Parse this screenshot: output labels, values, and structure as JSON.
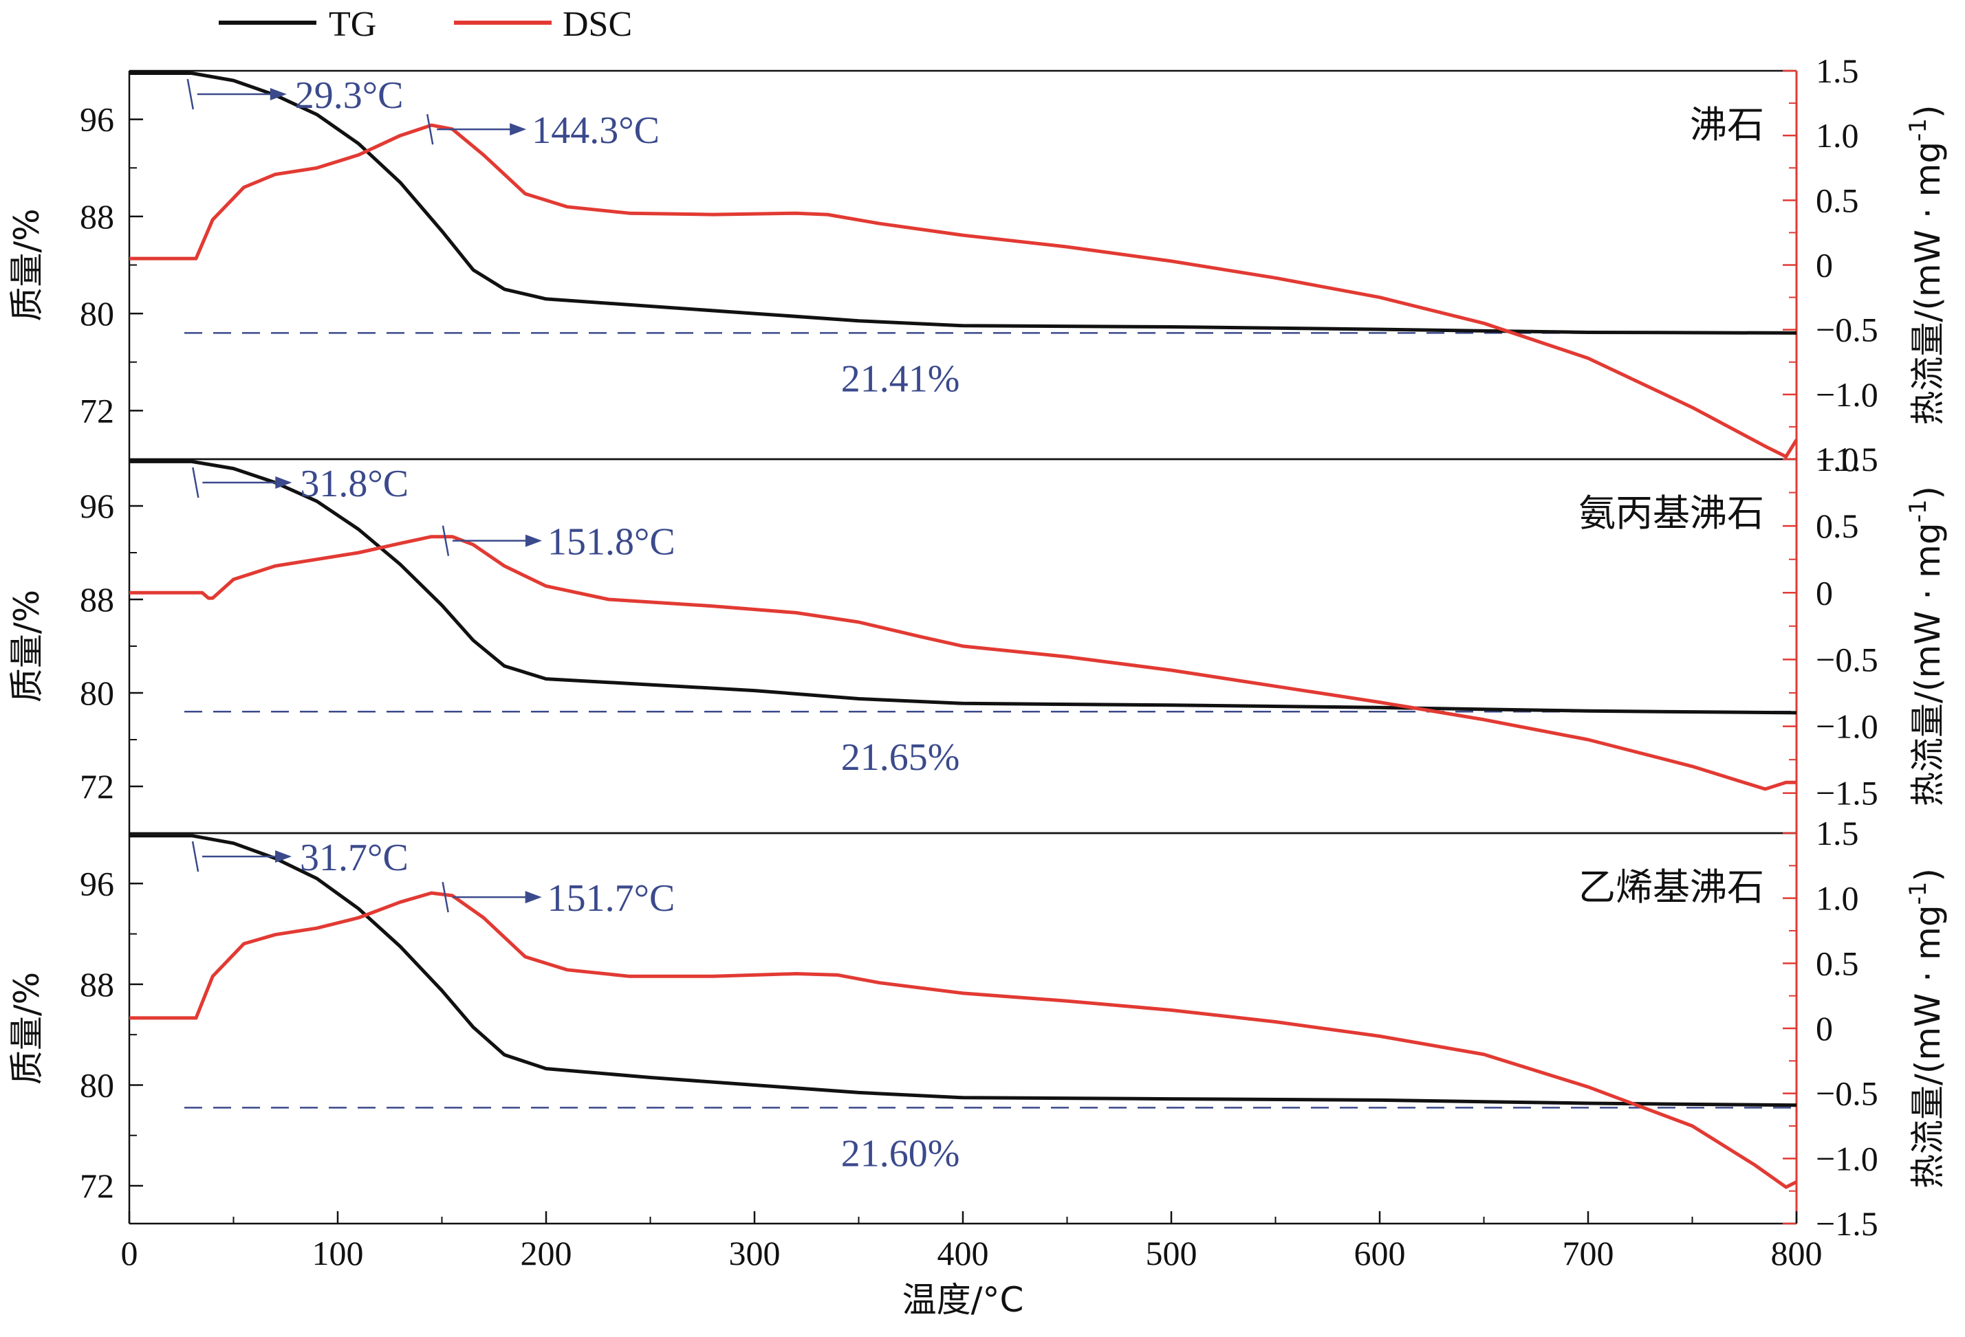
{
  "chart_data": {
    "type": "line",
    "xlabel": "温度/°C",
    "x_ticks": [
      0,
      100,
      200,
      300,
      400,
      500,
      600,
      700,
      800
    ],
    "xlim": [
      0,
      800
    ],
    "legend": [
      {
        "name": "TG",
        "color": "#111111"
      },
      {
        "name": "DSC",
        "color": "#e23a33"
      }
    ],
    "colors": {
      "tg": "#111111",
      "dsc": "#e23a33",
      "annotation": "#3b4a8c"
    },
    "left_ylabel": "质量/%",
    "right_ylabel": "热流量/(mW · mg",
    "right_ylabel_sup": "-1",
    "right_ylabel_close": ")",
    "panels": [
      {
        "label": "沸石",
        "tg_ylim": [
          68,
          100
        ],
        "tg_ticks": [
          72,
          80,
          88,
          96
        ],
        "tg_tick_labels": [
          "72",
          "80",
          "88",
          "96"
        ],
        "dsc_ylim": [
          -1.5,
          1.5
        ],
        "dsc_ticks": [
          -1.5,
          -1.0,
          -0.5,
          0,
          0.5,
          1.0,
          1.5
        ],
        "dsc_tick_labels": [
          "−1.5",
          "−1.0",
          "−0.5",
          "0",
          "0.5",
          "1.0",
          "1.5"
        ],
        "dashed_y": 78.4,
        "mass_loss": "21.41%",
        "onset": {
          "x": 29.3,
          "label": "29.3°C"
        },
        "peak": {
          "x": 144.3,
          "label": "144.3°C"
        },
        "tg": [
          [
            0,
            99.8
          ],
          [
            20,
            99.8
          ],
          [
            30,
            99.8
          ],
          [
            50,
            99.2
          ],
          [
            70,
            98.0
          ],
          [
            90,
            96.4
          ],
          [
            110,
            94.0
          ],
          [
            130,
            90.8
          ],
          [
            150,
            86.8
          ],
          [
            165,
            83.6
          ],
          [
            180,
            82.0
          ],
          [
            200,
            81.2
          ],
          [
            250,
            80.6
          ],
          [
            300,
            80.0
          ],
          [
            350,
            79.4
          ],
          [
            400,
            79.0
          ],
          [
            500,
            78.9
          ],
          [
            600,
            78.7
          ],
          [
            700,
            78.45
          ],
          [
            800,
            78.4
          ]
        ],
        "dsc": [
          [
            0,
            0.05
          ],
          [
            30,
            0.05
          ],
          [
            32,
            0.05
          ],
          [
            40,
            0.35
          ],
          [
            55,
            0.6
          ],
          [
            70,
            0.7
          ],
          [
            90,
            0.75
          ],
          [
            110,
            0.85
          ],
          [
            130,
            1.0
          ],
          [
            145,
            1.08
          ],
          [
            155,
            1.05
          ],
          [
            170,
            0.85
          ],
          [
            190,
            0.55
          ],
          [
            210,
            0.45
          ],
          [
            240,
            0.4
          ],
          [
            280,
            0.39
          ],
          [
            320,
            0.4
          ],
          [
            335,
            0.39
          ],
          [
            360,
            0.32
          ],
          [
            400,
            0.23
          ],
          [
            450,
            0.14
          ],
          [
            500,
            0.03
          ],
          [
            550,
            -0.1
          ],
          [
            600,
            -0.25
          ],
          [
            650,
            -0.45
          ],
          [
            700,
            -0.72
          ],
          [
            750,
            -1.1
          ],
          [
            785,
            -1.4
          ],
          [
            795,
            -1.48
          ],
          [
            800,
            -1.35
          ]
        ]
      },
      {
        "label": "氨丙基沸石",
        "tg_ylim": [
          68,
          100
        ],
        "tg_ticks": [
          72,
          80,
          88,
          96
        ],
        "tg_tick_labels": [
          "72",
          "80",
          "88",
          "96"
        ],
        "dsc_ylim": [
          -1.8,
          1.0
        ],
        "dsc_ticks": [
          -1.5,
          -1.0,
          -0.5,
          0,
          0.5,
          1.0
        ],
        "dsc_tick_labels": [
          "−1.5",
          "−1.0",
          "−0.5",
          "0",
          "0.5",
          "1.0"
        ],
        "dashed_y": 78.4,
        "mass_loss": "21.65%",
        "onset": {
          "x": 31.8,
          "label": "31.8°C"
        },
        "peak": {
          "x": 151.8,
          "label": "151.8°C"
        },
        "tg": [
          [
            0,
            99.8
          ],
          [
            20,
            99.8
          ],
          [
            30,
            99.8
          ],
          [
            50,
            99.2
          ],
          [
            70,
            98.0
          ],
          [
            90,
            96.4
          ],
          [
            110,
            94.0
          ],
          [
            130,
            91.0
          ],
          [
            150,
            87.5
          ],
          [
            165,
            84.5
          ],
          [
            180,
            82.3
          ],
          [
            200,
            81.2
          ],
          [
            250,
            80.7
          ],
          [
            300,
            80.2
          ],
          [
            350,
            79.5
          ],
          [
            400,
            79.1
          ],
          [
            500,
            78.95
          ],
          [
            600,
            78.75
          ],
          [
            700,
            78.45
          ],
          [
            800,
            78.3
          ]
        ],
        "dsc": [
          [
            0,
            0.0
          ],
          [
            35,
            0.0
          ],
          [
            38,
            -0.04
          ],
          [
            40,
            -0.04
          ],
          [
            50,
            0.1
          ],
          [
            70,
            0.2
          ],
          [
            90,
            0.25
          ],
          [
            110,
            0.3
          ],
          [
            130,
            0.37
          ],
          [
            145,
            0.42
          ],
          [
            155,
            0.42
          ],
          [
            165,
            0.36
          ],
          [
            180,
            0.2
          ],
          [
            200,
            0.05
          ],
          [
            230,
            -0.05
          ],
          [
            280,
            -0.1
          ],
          [
            320,
            -0.15
          ],
          [
            350,
            -0.22
          ],
          [
            380,
            -0.33
          ],
          [
            400,
            -0.4
          ],
          [
            450,
            -0.48
          ],
          [
            500,
            -0.58
          ],
          [
            550,
            -0.7
          ],
          [
            600,
            -0.82
          ],
          [
            650,
            -0.95
          ],
          [
            700,
            -1.1
          ],
          [
            750,
            -1.3
          ],
          [
            785,
            -1.47
          ],
          [
            795,
            -1.42
          ],
          [
            800,
            -1.42
          ]
        ]
      },
      {
        "label": "乙烯基沸石",
        "tg_ylim": [
          69,
          100
        ],
        "tg_ticks": [
          72,
          80,
          88,
          96
        ],
        "tg_tick_labels": [
          "72",
          "80",
          "88",
          "96"
        ],
        "dsc_ylim": [
          -1.5,
          1.5
        ],
        "dsc_ticks": [
          -1.5,
          -1.0,
          -0.5,
          0,
          0.5,
          1.0,
          1.5
        ],
        "dsc_tick_labels": [
          "−1.5",
          "−1.0",
          "−0.5",
          "0",
          "0.5",
          "1.0",
          "1.5"
        ],
        "dashed_y": 78.2,
        "mass_loss": "21.60%",
        "onset": {
          "x": 31.7,
          "label": "31.7°C"
        },
        "peak": {
          "x": 151.7,
          "label": "151.7°C"
        },
        "tg": [
          [
            0,
            99.8
          ],
          [
            20,
            99.8
          ],
          [
            30,
            99.8
          ],
          [
            50,
            99.2
          ],
          [
            70,
            98.0
          ],
          [
            90,
            96.4
          ],
          [
            110,
            94.0
          ],
          [
            130,
            91.0
          ],
          [
            150,
            87.5
          ],
          [
            165,
            84.6
          ],
          [
            180,
            82.4
          ],
          [
            200,
            81.3
          ],
          [
            250,
            80.6
          ],
          [
            300,
            80.0
          ],
          [
            350,
            79.4
          ],
          [
            400,
            79.0
          ],
          [
            500,
            78.9
          ],
          [
            600,
            78.8
          ],
          [
            700,
            78.55
          ],
          [
            800,
            78.4
          ]
        ],
        "dsc": [
          [
            0,
            0.08
          ],
          [
            30,
            0.08
          ],
          [
            32,
            0.08
          ],
          [
            40,
            0.4
          ],
          [
            55,
            0.65
          ],
          [
            70,
            0.72
          ],
          [
            90,
            0.77
          ],
          [
            110,
            0.85
          ],
          [
            130,
            0.97
          ],
          [
            145,
            1.04
          ],
          [
            155,
            1.02
          ],
          [
            170,
            0.85
          ],
          [
            190,
            0.55
          ],
          [
            210,
            0.45
          ],
          [
            240,
            0.4
          ],
          [
            280,
            0.4
          ],
          [
            320,
            0.42
          ],
          [
            340,
            0.41
          ],
          [
            360,
            0.35
          ],
          [
            400,
            0.27
          ],
          [
            450,
            0.21
          ],
          [
            500,
            0.14
          ],
          [
            550,
            0.05
          ],
          [
            600,
            -0.06
          ],
          [
            650,
            -0.2
          ],
          [
            700,
            -0.45
          ],
          [
            750,
            -0.75
          ],
          [
            780,
            -1.05
          ],
          [
            795,
            -1.22
          ],
          [
            800,
            -1.18
          ]
        ]
      }
    ]
  }
}
